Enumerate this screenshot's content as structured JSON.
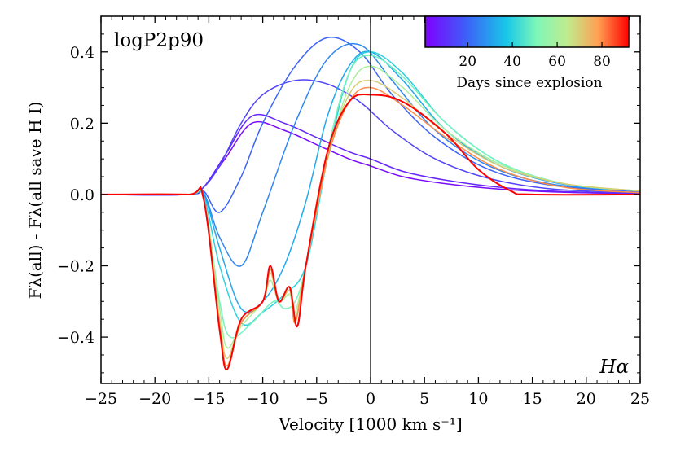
{
  "chart_data": {
    "type": "line",
    "title": "",
    "model_label": "logP2p90",
    "line_label": "Hα",
    "xlabel": "Velocity [1000 km s⁻¹]",
    "ylabel": "Fλ(all) - Fλ(all save H I)",
    "xlim": [
      -25,
      25
    ],
    "ylim": [
      -0.53,
      0.5
    ],
    "x_ticks": [
      -25,
      -20,
      -15,
      -10,
      -5,
      0,
      5,
      10,
      15,
      20,
      25
    ],
    "x_tick_labels": [
      "−25",
      "−20",
      "−15",
      "−10",
      "−5",
      "0",
      "5",
      "10",
      "15",
      "20",
      "25"
    ],
    "y_ticks": [
      -0.4,
      -0.2,
      0.0,
      0.2,
      0.4
    ],
    "y_tick_labels": [
      "−0.4",
      "−0.2",
      "0.0",
      "0.2",
      "0.4"
    ],
    "vertical_line_x": 0,
    "colorbar": {
      "label": "Days since explosion",
      "range": [
        1,
        92
      ],
      "ticks": [
        20,
        40,
        60,
        80
      ],
      "tick_labels": [
        "20",
        "40",
        "60",
        "80"
      ],
      "colormap": "rainbow",
      "position": "top-right"
    },
    "series": [
      {
        "name": "day 3",
        "day": 3,
        "x": [
          -25,
          -17,
          -15.5,
          -13.5,
          -11,
          -8,
          -5,
          -2,
          0,
          3,
          7,
          12,
          18,
          25
        ],
        "y": [
          0,
          0,
          0.02,
          0.1,
          0.2,
          0.18,
          0.14,
          0.1,
          0.08,
          0.05,
          0.03,
          0.015,
          0.006,
          0.002
        ]
      },
      {
        "name": "day 8",
        "day": 8,
        "x": [
          -25,
          -17,
          -15.5,
          -13.5,
          -11,
          -8,
          -5,
          -2,
          0,
          3,
          7,
          12,
          18,
          25
        ],
        "y": [
          0,
          0,
          0.02,
          0.11,
          0.22,
          0.2,
          0.16,
          0.12,
          0.1,
          0.065,
          0.04,
          0.02,
          0.008,
          0.003
        ]
      },
      {
        "name": "day 14",
        "day": 14,
        "x": [
          -25,
          -17,
          -15.5,
          -14,
          -12,
          -10,
          -7,
          -4,
          -1,
          2,
          6,
          11,
          17,
          25
        ],
        "y": [
          0,
          0,
          0.02,
          0.08,
          0.2,
          0.28,
          0.32,
          0.31,
          0.26,
          0.18,
          0.1,
          0.045,
          0.015,
          0.005
        ]
      },
      {
        "name": "day 20",
        "day": 20,
        "x": [
          -25,
          -17,
          -15.5,
          -14,
          -12,
          -10,
          -7,
          -4,
          -1,
          2,
          6,
          11,
          17,
          25
        ],
        "y": [
          0,
          0,
          0.01,
          -0.05,
          0.05,
          0.2,
          0.36,
          0.44,
          0.4,
          0.28,
          0.16,
          0.07,
          0.025,
          0.008
        ]
      },
      {
        "name": "day 26",
        "day": 26,
        "x": [
          -25,
          -17,
          -15.5,
          -14,
          -12,
          -10,
          -7,
          -4,
          -1,
          2,
          6,
          11,
          17,
          25
        ],
        "y": [
          0,
          0,
          0.005,
          -0.12,
          -0.2,
          -0.05,
          0.2,
          0.38,
          0.42,
          0.32,
          0.18,
          0.08,
          0.028,
          0.009
        ]
      },
      {
        "name": "day 32",
        "day": 32,
        "x": [
          -25,
          -17,
          -15.5,
          -14,
          -12,
          -10,
          -8,
          -6,
          -4,
          -2,
          0,
          3,
          7,
          12,
          18,
          25
        ],
        "y": [
          0,
          0,
          0,
          -0.15,
          -0.32,
          -0.3,
          -0.2,
          -0.02,
          0.22,
          0.36,
          0.4,
          0.32,
          0.18,
          0.08,
          0.028,
          0.01
        ]
      },
      {
        "name": "day 40",
        "day": 40,
        "x": [
          -25,
          -17,
          -15.5,
          -14,
          -12,
          -10,
          -8,
          -6,
          -4,
          -2,
          0,
          3,
          7,
          12,
          18,
          25
        ],
        "y": [
          0,
          0,
          -0.005,
          -0.2,
          -0.36,
          -0.33,
          -0.28,
          -0.2,
          0.1,
          0.34,
          0.4,
          0.34,
          0.2,
          0.09,
          0.03,
          0.01
        ]
      },
      {
        "name": "day 50",
        "day": 50,
        "x": [
          -25,
          -17,
          -15.5,
          -14,
          -13,
          -11,
          -9,
          -8,
          -7,
          -6,
          -4,
          -2,
          0,
          3,
          7,
          12,
          18,
          25
        ],
        "y": [
          0,
          0,
          -0.01,
          -0.3,
          -0.4,
          -0.36,
          -0.3,
          -0.32,
          -0.3,
          -0.2,
          0.12,
          0.34,
          0.39,
          0.33,
          0.2,
          0.09,
          0.03,
          0.01
        ]
      },
      {
        "name": "day 60",
        "day": 60,
        "x": [
          -25,
          -17,
          -15.5,
          -14,
          -13.3,
          -12,
          -10,
          -9.3,
          -8.5,
          -7.5,
          -7,
          -6,
          -4,
          -2,
          0,
          3,
          7,
          12,
          18,
          25
        ],
        "y": [
          0,
          0,
          -0.01,
          -0.32,
          -0.43,
          -0.37,
          -0.3,
          -0.24,
          -0.3,
          -0.28,
          -0.33,
          -0.2,
          0.1,
          0.3,
          0.36,
          0.3,
          0.18,
          0.085,
          0.03,
          0.01
        ]
      },
      {
        "name": "day 70",
        "day": 70,
        "x": [
          -25,
          -17,
          -15.5,
          -14,
          -13.3,
          -12,
          -10,
          -9.3,
          -8.5,
          -7.5,
          -7,
          -6,
          -4,
          -2,
          0,
          3,
          7,
          12,
          18,
          25
        ],
        "y": [
          0,
          0,
          -0.01,
          -0.35,
          -0.46,
          -0.36,
          -0.3,
          -0.22,
          -0.3,
          -0.27,
          -0.35,
          -0.2,
          0.1,
          0.28,
          0.32,
          0.27,
          0.17,
          0.08,
          0.03,
          0.01
        ]
      },
      {
        "name": "day 80",
        "day": 80,
        "x": [
          -25,
          -17,
          -15.5,
          -14,
          -13.3,
          -12,
          -10,
          -9.3,
          -8.5,
          -7.5,
          -7,
          -6,
          -4,
          -2,
          0,
          3,
          7,
          12,
          18,
          25
        ],
        "y": [
          0,
          0,
          -0.01,
          -0.37,
          -0.48,
          -0.36,
          -0.3,
          -0.21,
          -0.3,
          -0.26,
          -0.36,
          -0.2,
          0.1,
          0.26,
          0.3,
          0.25,
          0.16,
          0.07,
          0.02,
          0.005
        ]
      },
      {
        "name": "day 92",
        "day": 92,
        "x": [
          -25,
          -17,
          -15.5,
          -14,
          -13.3,
          -12,
          -10,
          -9.3,
          -8.5,
          -7.5,
          -6.8,
          -6,
          -4,
          -2,
          0,
          3,
          7,
          10,
          13,
          15,
          25
        ],
        "y": [
          0,
          0,
          -0.01,
          -0.38,
          -0.49,
          -0.35,
          -0.3,
          -0.2,
          -0.3,
          -0.26,
          -0.37,
          -0.2,
          0.12,
          0.26,
          0.28,
          0.26,
          0.17,
          0.07,
          0.01,
          0,
          0
        ]
      }
    ]
  }
}
